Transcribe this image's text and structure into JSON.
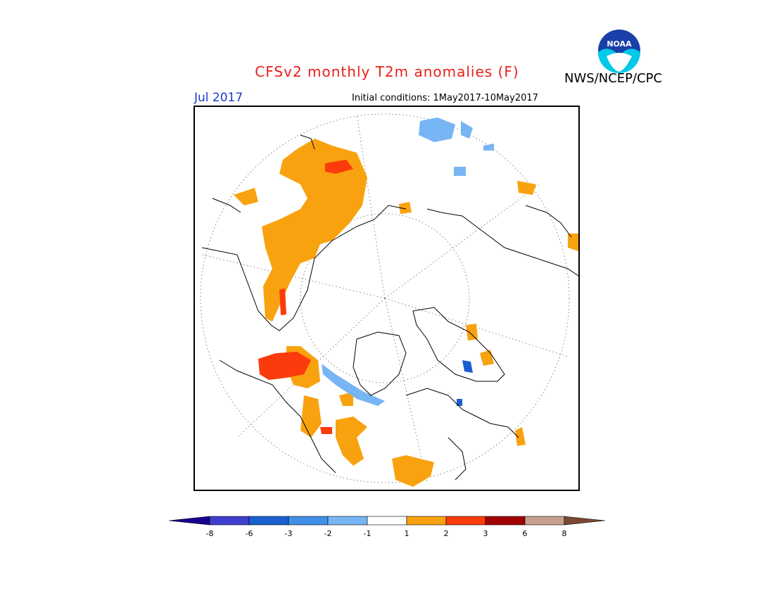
{
  "header": {
    "title": "CFSv2 monthly T2m anomalies (F)",
    "agency": "NWS/NCEP/CPC",
    "logo_text": "NOAA",
    "month": "Jul 2017",
    "initial_conditions": "Initial conditions: 1May2017-10May2017"
  },
  "map": {
    "projection": "north-polar-stereographic",
    "graticule": "dotted",
    "coastline_color": "#000000"
  },
  "colorbar": {
    "labels": [
      "-8",
      "-6",
      "-3",
      "-2",
      "-1",
      "1",
      "2",
      "3",
      "6",
      "8"
    ],
    "colors": [
      "#1a0090",
      "#3f3fcf",
      "#1a5fd0",
      "#3f8fe8",
      "#77b5f4",
      "#ffffff",
      "#f9a20f",
      "#fb3b0b",
      "#a00000",
      "#c6a08e",
      "#7a4830"
    ],
    "extend": "both"
  }
}
